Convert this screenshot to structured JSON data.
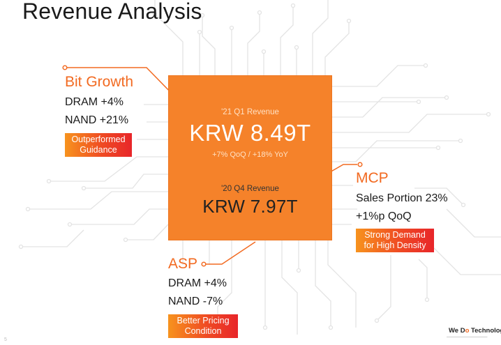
{
  "title": "Revenue Analysis",
  "chip": {
    "q1_label": "'21 Q1 Revenue",
    "q1_value": "KRW 8.49T",
    "q1_growth": "+7% QoQ / +18% YoY",
    "q4_label": "'20 Q4  Revenue",
    "q4_value": "KRW 7.97T",
    "color": "#f5822a"
  },
  "bit_growth": {
    "title": "Bit Growth",
    "lines": [
      "DRAM +4%",
      "NAND +21%"
    ],
    "tag": [
      "Outperformed",
      "Guidance"
    ]
  },
  "mcp": {
    "title": "MCP",
    "lines": [
      "Sales Portion 23%",
      "+1%p QoQ"
    ],
    "tag": [
      "Strong Demand",
      "for High Density"
    ]
  },
  "asp": {
    "title": "ASP",
    "lines": [
      "DRAM +4%",
      "NAND -7%"
    ],
    "tag": [
      "Better Pricing",
      "Condition"
    ]
  },
  "footer": {
    "logo_pre": "We D",
    "logo_o": "o",
    "logo_post": " Technology",
    "tagline": "—————————————",
    "page": "5"
  },
  "accent_color": "#f26a21"
}
